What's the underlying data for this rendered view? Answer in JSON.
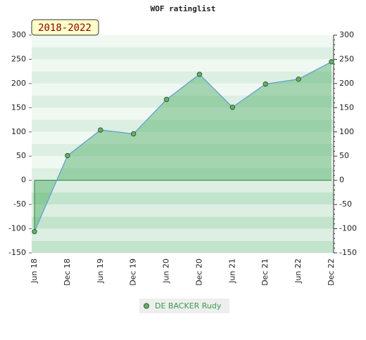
{
  "chart_data": {
    "type": "line",
    "title": "WOF ratinglist",
    "badge": "2018-2022",
    "categories": [
      "Jun 18",
      "Dec 18",
      "Jun 19",
      "Dec 19",
      "Jun 20",
      "Dec 20",
      "Jun 21",
      "Dec 21",
      "Jun 22",
      "Dec 22"
    ],
    "series": [
      {
        "name": "DE BACKER Rudy",
        "color": "#5b9bd5",
        "values": [
          -106,
          51,
          104,
          96,
          167,
          219,
          151,
          199,
          209,
          245
        ]
      }
    ],
    "ylim": [
      -150,
      300
    ],
    "yticks": [
      -150,
      -100,
      -50,
      0,
      50,
      100,
      150,
      200,
      250,
      300
    ],
    "y2lim": [
      -150,
      300
    ],
    "y2ticks": [
      -150,
      -100,
      -50,
      0,
      50,
      100,
      150,
      200,
      250,
      300
    ],
    "legend": "bottom"
  }
}
